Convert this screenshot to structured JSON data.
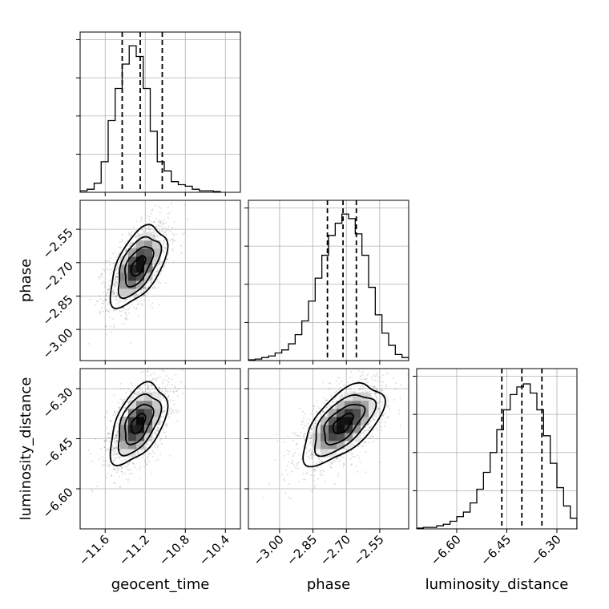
{
  "chart_data": {
    "type": "corner",
    "parameters": [
      "geocent_time",
      "phase",
      "luminosity_distance"
    ],
    "axis_labels": {
      "geocent_time": "geocent_time",
      "phase": "phase",
      "luminosity_distance": "luminosity_distance"
    },
    "ranges": {
      "geocent_time": [
        -11.85,
        -10.25
      ],
      "phase": [
        -3.14,
        -2.42
      ],
      "luminosity_distance": [
        -6.72,
        -6.24
      ]
    },
    "ticks": {
      "geocent_time": {
        "values": [
          -11.6,
          -11.2,
          -10.8,
          -10.4
        ],
        "labels": [
          "−11.6",
          "−11.2",
          "−10.8",
          "−10.4"
        ]
      },
      "phase": {
        "values": [
          -3.0,
          -2.85,
          -2.7,
          -2.55
        ],
        "labels": [
          "−3.00",
          "−2.85",
          "−2.70",
          "−2.55"
        ]
      },
      "luminosity_distance": {
        "values": [
          -6.6,
          -6.45,
          -6.3
        ],
        "labels": [
          "−6.60",
          "−6.45",
          "−6.30"
        ]
      }
    },
    "grid": true,
    "quantiles": {
      "geocent_time": [
        -11.43,
        -11.25,
        -11.03
      ],
      "phase": [
        -2.785,
        -2.715,
        -2.655
      ],
      "luminosity_distance": [
        -6.465,
        -6.405,
        -6.345
      ]
    },
    "histograms": {
      "geocent_time": {
        "edges": [
          -11.85,
          -11.78,
          -11.71,
          -11.64,
          -11.57,
          -11.5,
          -11.43,
          -11.36,
          -11.29,
          -11.22,
          -11.15,
          -11.08,
          -11.01,
          -10.94,
          -10.87,
          -10.8,
          -10.73,
          -10.66,
          -10.59,
          -10.52,
          -10.45
        ],
        "counts": [
          0.01,
          0.02,
          0.06,
          0.2,
          0.47,
          0.68,
          0.84,
          0.96,
          0.89,
          0.68,
          0.4,
          0.2,
          0.14,
          0.07,
          0.05,
          0.04,
          0.02,
          0.01,
          0.01,
          0.005
        ],
        "ymax": 1.0
      },
      "phase": {
        "edges": [
          -3.14,
          -3.11,
          -3.08,
          -3.05,
          -3.02,
          -2.99,
          -2.96,
          -2.93,
          -2.9,
          -2.87,
          -2.84,
          -2.81,
          -2.78,
          -2.75,
          -2.72,
          -2.69,
          -2.66,
          -2.63,
          -2.6,
          -2.57,
          -2.54,
          -2.51,
          -2.48,
          -2.45,
          -2.42
        ],
        "counts": [
          0.005,
          0.01,
          0.02,
          0.03,
          0.05,
          0.07,
          0.11,
          0.17,
          0.26,
          0.39,
          0.54,
          0.69,
          0.82,
          0.9,
          0.96,
          0.93,
          0.83,
          0.69,
          0.48,
          0.3,
          0.18,
          0.1,
          0.04,
          0.02
        ],
        "ymax": 1.0
      },
      "luminosity_distance": {
        "edges": [
          -6.72,
          -6.7,
          -6.68,
          -6.66,
          -6.64,
          -6.62,
          -6.6,
          -6.58,
          -6.56,
          -6.54,
          -6.52,
          -6.5,
          -6.48,
          -6.46,
          -6.44,
          -6.42,
          -6.4,
          -6.38,
          -6.36,
          -6.34,
          -6.32,
          -6.3,
          -6.28,
          -6.26,
          -6.24
        ],
        "counts": [
          0.005,
          0.01,
          0.01,
          0.02,
          0.03,
          0.05,
          0.08,
          0.11,
          0.17,
          0.26,
          0.37,
          0.5,
          0.65,
          0.78,
          0.88,
          0.93,
          0.95,
          0.89,
          0.78,
          0.61,
          0.43,
          0.27,
          0.15,
          0.07
        ],
        "ymax": 1.0
      }
    },
    "joint": [
      {
        "x": "geocent_time",
        "y": "phase",
        "mean": [
          -11.27,
          -2.715
        ],
        "sd": [
          0.14,
          0.09
        ],
        "rho": 0.55
      },
      {
        "x": "geocent_time",
        "y": "luminosity_distance",
        "mean": [
          -11.27,
          -6.405
        ],
        "sd": [
          0.14,
          0.06
        ],
        "rho": 0.5
      },
      {
        "x": "phase",
        "y": "luminosity_distance",
        "mean": [
          -2.715,
          -6.405
        ],
        "sd": [
          0.09,
          0.06
        ],
        "rho": 0.6
      }
    ],
    "contour_levels": [
      0.5,
      1.0,
      1.5,
      2.0
    ]
  }
}
